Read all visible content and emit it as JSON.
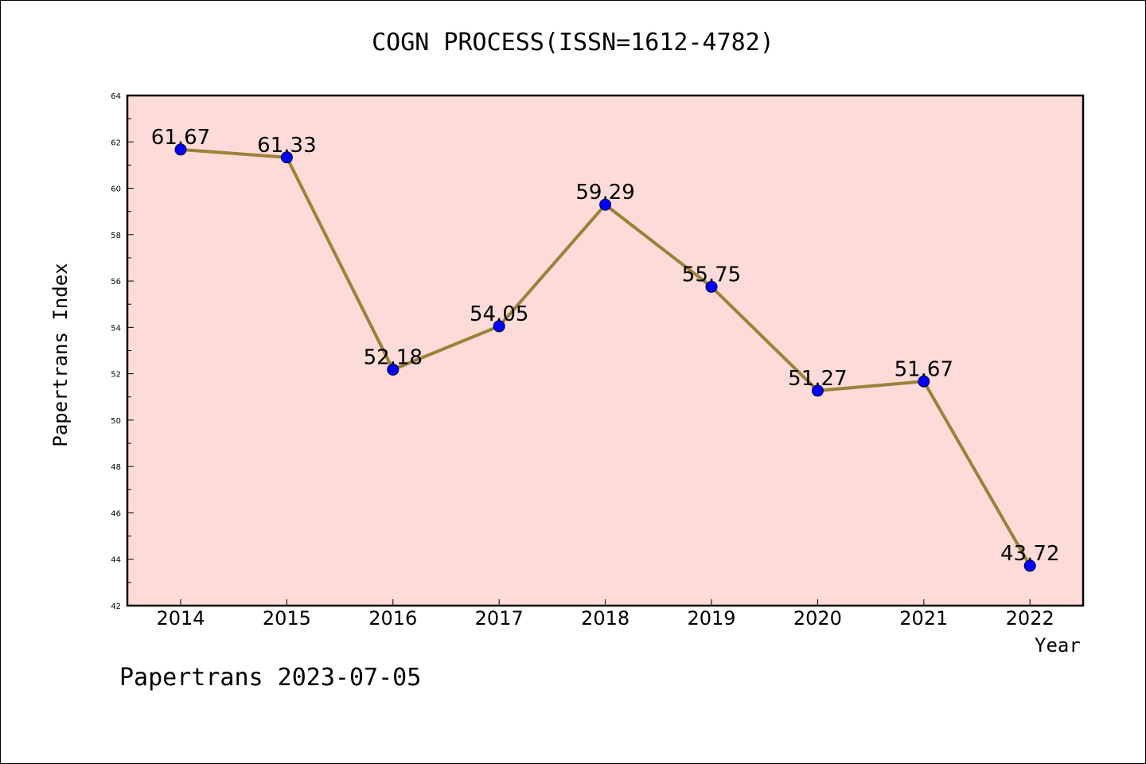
{
  "title": "COGN PROCESS(ISSN=1612-4782)",
  "footer": "Papertrans 2023-07-05",
  "colors": {
    "plot_background": "#fddbd8",
    "line": "#9a8239",
    "marker": "#0000ff",
    "axis": "#000000"
  },
  "chart_data": {
    "type": "line",
    "title": "COGN PROCESS(ISSN=1612-4782)",
    "xlabel": "Year",
    "ylabel": "Papertrans Index",
    "categories": [
      "2014",
      "2015",
      "2016",
      "2017",
      "2018",
      "2019",
      "2020",
      "2021",
      "2022"
    ],
    "series": [
      {
        "values": [
          61.67,
          61.33,
          52.18,
          54.05,
          59.29,
          55.75,
          51.27,
          51.67,
          43.72
        ],
        "labels": [
          "61.67",
          "61.33",
          "52.18",
          "54.05",
          "59.29",
          "55.75",
          "51.27",
          "51.67",
          "43.72"
        ]
      }
    ],
    "ylim": [
      42,
      64
    ],
    "yticks": [
      "42",
      "44",
      "46",
      "48",
      "50",
      "52",
      "54",
      "56",
      "58",
      "60",
      "62",
      "64"
    ],
    "grid": false,
    "legend": "none"
  }
}
